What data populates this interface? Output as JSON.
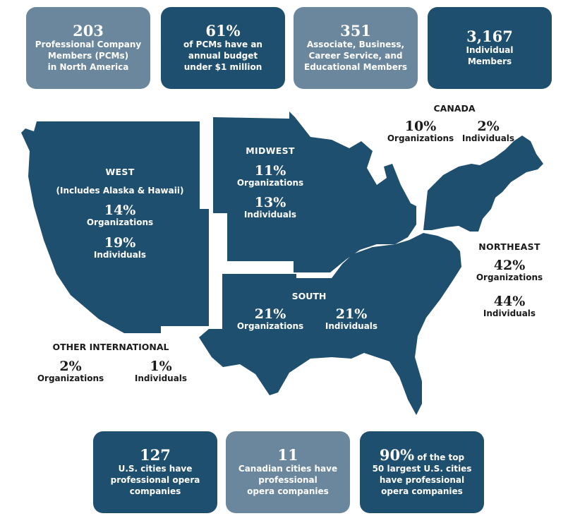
{
  "colors": {
    "dark": "#1f4f6f",
    "light": "#6b879e",
    "map": "#1f4f6f"
  },
  "top_stats": [
    {
      "value": "203",
      "lines": [
        "Professional Company",
        "Members (PCMs)",
        "in North America"
      ]
    },
    {
      "value": "61%",
      "lines": [
        "of PCMs have an",
        "annual budget",
        "under $1 million"
      ]
    },
    {
      "value": "351",
      "lines": [
        "Associate, Business,",
        "Career Service, and",
        "Educational Members"
      ]
    },
    {
      "value": "3,167",
      "lines": [
        "Individual",
        "Members"
      ]
    }
  ],
  "regions": {
    "west": {
      "name": "WEST",
      "note": "(Includes Alaska & Hawaii)",
      "org_pct": "14%",
      "org_label": "Organizations",
      "ind_pct": "19%",
      "ind_label": "Individuals"
    },
    "midwest": {
      "name": "MIDWEST",
      "org_pct": "11%",
      "org_label": "Organizations",
      "ind_pct": "13%",
      "ind_label": "Individuals"
    },
    "south": {
      "name": "SOUTH",
      "org_pct": "21%",
      "org_label": "Organizations",
      "ind_pct": "21%",
      "ind_label": "Individuals"
    },
    "northeast": {
      "name": "NORTHEAST",
      "org_pct": "42%",
      "org_label": "Organizations",
      "ind_pct": "44%",
      "ind_label": "Individuals"
    },
    "canada": {
      "name": "CANADA",
      "org_pct": "10%",
      "org_label": "Organizations",
      "ind_pct": "2%",
      "ind_label": "Individuals"
    },
    "other": {
      "name": "OTHER INTERNATIONAL",
      "org_pct": "2%",
      "org_label": "Organizations",
      "ind_pct": "1%",
      "ind_label": "Individuals"
    }
  },
  "bottom_stats": [
    {
      "value": "127",
      "suffix": "",
      "lines": [
        "U.S. cities have",
        "professional opera",
        "companies"
      ]
    },
    {
      "value": "11",
      "suffix": "",
      "lines": [
        "Canadian cities have",
        "professional",
        "opera companies"
      ]
    },
    {
      "value": "90%",
      "suffix": " of the top",
      "lines": [
        "50 largest U.S. cities",
        "have professional",
        "opera companies"
      ]
    }
  ]
}
